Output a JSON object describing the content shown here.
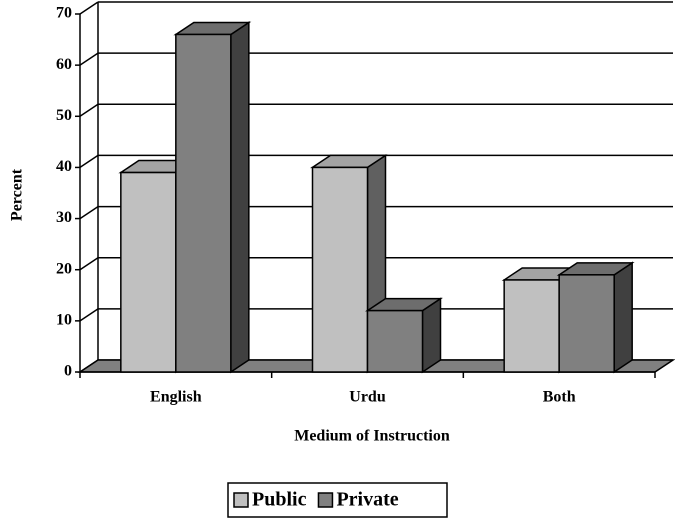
{
  "chart_data": {
    "type": "bar3d",
    "x_label": "Medium of Instruction",
    "y_label": "Percent",
    "categories": [
      "English",
      "Urdu",
      "Both"
    ],
    "series": [
      {
        "name": "Public",
        "color": "#c0c0c0",
        "values": [
          39,
          40,
          18
        ]
      },
      {
        "name": "Private",
        "color": "#808080",
        "values": [
          66,
          12,
          19
        ]
      }
    ],
    "ylim": [
      0,
      70
    ],
    "yticks": [
      0,
      10,
      20,
      30,
      40,
      50,
      60,
      70
    ],
    "grid": true,
    "legend": "bottom"
  }
}
